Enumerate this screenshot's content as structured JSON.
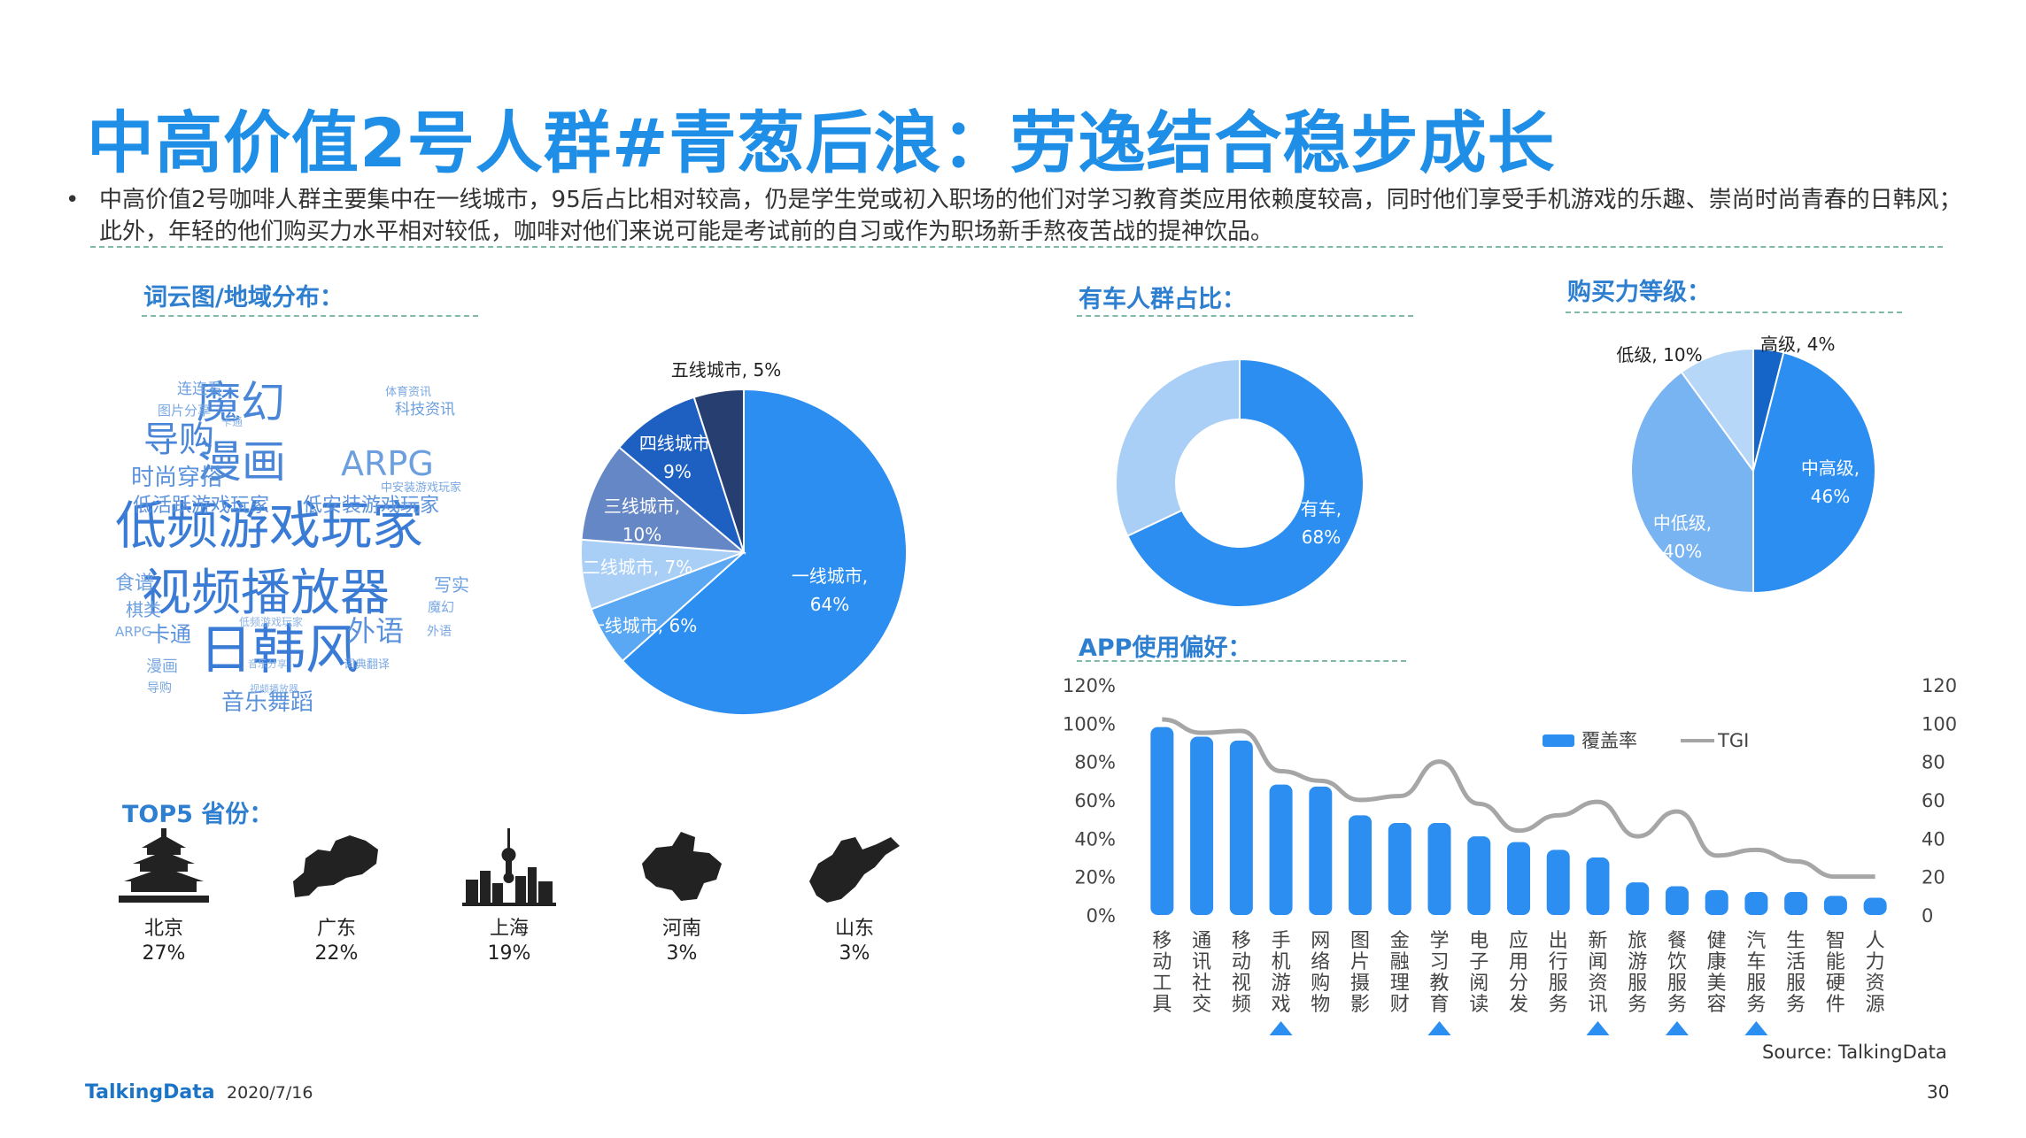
{
  "title": "中高价值2号人群#青葱后浪：劳逸结合稳步成长",
  "bullet": "中高价值2号咖啡人群主要集中在一线城市，95后占比相对较高，仍是学生党或初入职场的他们对学习教育类应用依赖度较高，同时他们享受手机游戏的乐趣、崇尚时尚青春的日韩风；此外，年轻的他们购买力水平相对较低，咖啡对他们来说可能是考试前的自习或作为职场新手熬夜苦战的提神饮品。",
  "sections": {
    "wordcloud": "词云图/地域分布：",
    "car": "有车人群占比：",
    "purchase": "购买力等级：",
    "app": "APP使用偏好：",
    "top5": "TOP5 省份："
  },
  "wordcloud": [
    {
      "t": "低频游戏玩家",
      "s": 58,
      "c": "#3a7bd5"
    },
    {
      "t": "视频播放器",
      "s": 56,
      "c": "#3a7bd5"
    },
    {
      "t": "日韩风",
      "s": 60,
      "c": "#3a7bd5"
    },
    {
      "t": "魔幻",
      "s": 50,
      "c": "#4a86d8"
    },
    {
      "t": "漫画",
      "s": 50,
      "c": "#4a86d8"
    },
    {
      "t": "导购",
      "s": 40,
      "c": "#4a86d8"
    },
    {
      "t": "ARPG",
      "s": 38,
      "c": "#6b9fe0"
    },
    {
      "t": "时尚穿搭",
      "s": 26,
      "c": "#5b92dc"
    },
    {
      "t": "低活跃游戏玩家",
      "s": 22,
      "c": "#5b92dc"
    },
    {
      "t": "低安装游戏玩家",
      "s": 22,
      "c": "#5b92dc"
    },
    {
      "t": "外语",
      "s": 32,
      "c": "#5b92dc"
    },
    {
      "t": "音乐舞蹈",
      "s": 26,
      "c": "#5b92dc"
    },
    {
      "t": "卡通",
      "s": 24,
      "c": "#5b92dc"
    },
    {
      "t": "食谱",
      "s": 22,
      "c": "#6b9fe0"
    },
    {
      "t": "棋类",
      "s": 20,
      "c": "#6b9fe0"
    },
    {
      "t": "写实",
      "s": 20,
      "c": "#6b9fe0"
    },
    {
      "t": "科技资讯",
      "s": 17,
      "c": "#6b9fe0"
    },
    {
      "t": "连连看",
      "s": 17,
      "c": "#6b9fe0"
    },
    {
      "t": "图片分享",
      "s": 15,
      "c": "#7aa8e2"
    },
    {
      "t": "体育资讯",
      "s": 13,
      "c": "#7aa8e2"
    },
    {
      "t": "中安装游戏玩家",
      "s": 13,
      "c": "#7aa8e2"
    },
    {
      "t": "魔幻",
      "s": 15,
      "c": "#7aa8e2"
    },
    {
      "t": "外语",
      "s": 14,
      "c": "#7aa8e2"
    },
    {
      "t": "ARPG",
      "s": 15,
      "c": "#7aa8e2"
    },
    {
      "t": "漫画",
      "s": 18,
      "c": "#7aa8e2"
    },
    {
      "t": "词典翻译",
      "s": 13,
      "c": "#7aa8e2"
    },
    {
      "t": "导购",
      "s": 14,
      "c": "#7aa8e2"
    },
    {
      "t": "低频游戏玩家",
      "s": 12,
      "c": "#8cb4e6"
    },
    {
      "t": "音乐分享",
      "s": 11,
      "c": "#8cb4e6"
    },
    {
      "t": "视频播放器",
      "s": 11,
      "c": "#8cb4e6"
    },
    {
      "t": "卡通",
      "s": 12,
      "c": "#8cb4e6"
    }
  ],
  "city_pie": {
    "slices": [
      {
        "label": "一线城市,",
        "pct": "64%",
        "value": 64,
        "color": "#2b8ef0"
      },
      {
        "label": "新一线城市, 6%",
        "pct": "",
        "value": 6,
        "color": "#5aa8f3"
      },
      {
        "label": "二线城市, 7%",
        "pct": "",
        "value": 7,
        "color": "#a9cff7"
      },
      {
        "label": "三线城市,",
        "pct": "10%",
        "value": 10,
        "color": "#6687c6"
      },
      {
        "label": "四线城市,",
        "pct": "9%",
        "value": 9,
        "color": "#1e60c2"
      },
      {
        "label": "五线城市, 5%",
        "pct": "",
        "value": 5,
        "color": "#273e70"
      }
    ]
  },
  "car_donut": {
    "slices": [
      {
        "label": "有车,",
        "pct": "68%",
        "value": 68,
        "color": "#2b8ef0"
      },
      {
        "label": "",
        "pct": "",
        "value": 32,
        "color": "#a9cff7"
      }
    ]
  },
  "purchase_pie": {
    "slices": [
      {
        "label": "高级, 4%",
        "pct": "",
        "value": 4,
        "color": "#1565c8"
      },
      {
        "label": "中高级,",
        "pct": "46%",
        "value": 46,
        "color": "#2b8ef0"
      },
      {
        "label": "中低级,",
        "pct": "40%",
        "value": 40,
        "color": "#78b3f2"
      },
      {
        "label": "低级, 10%",
        "pct": "",
        "value": 10,
        "color": "#b7d7f8"
      }
    ]
  },
  "provinces": [
    {
      "name": "北京",
      "pct": "27%",
      "icon": "temple-icon"
    },
    {
      "name": "广东",
      "pct": "22%",
      "icon": "guangdong-map-icon"
    },
    {
      "name": "上海",
      "pct": "19%",
      "icon": "skyline-icon"
    },
    {
      "name": "河南",
      "pct": "3%",
      "icon": "henan-map-icon"
    },
    {
      "name": "山东",
      "pct": "3%",
      "icon": "shandong-map-icon"
    }
  ],
  "chart_data": {
    "type": "bar",
    "title": "APP使用偏好：",
    "categories": [
      "移动工具",
      "通讯社交",
      "移动视频",
      "手机游戏",
      "网络购物",
      "图片摄影",
      "金融理财",
      "学习教育",
      "电子阅读",
      "应用分发",
      "出行服务",
      "新闻资讯",
      "旅游服务",
      "餐饮服务",
      "健康美容",
      "汽车服务",
      "生活服务",
      "智能硬件",
      "人力资源"
    ],
    "series": [
      {
        "name": "覆盖率",
        "type": "bar",
        "axis": "left",
        "color": "#2b8ef0",
        "values": [
          98,
          93,
          91,
          68,
          67,
          52,
          48,
          48,
          41,
          38,
          34,
          30,
          17,
          15,
          13,
          12,
          12,
          10,
          9
        ]
      },
      {
        "name": "TGI",
        "type": "line",
        "axis": "right",
        "color": "#a6a6a6",
        "values": [
          102,
          95,
          96,
          75,
          70,
          60,
          62,
          80,
          58,
          44,
          52,
          59,
          41,
          54,
          31,
          34,
          28,
          20,
          20
        ]
      }
    ],
    "left_axis": {
      "ticks": [
        "0%",
        "20%",
        "40%",
        "60%",
        "80%",
        "100%",
        "120%"
      ],
      "range": [
        0,
        120
      ]
    },
    "right_axis": {
      "ticks": [
        "0",
        "20",
        "40",
        "60",
        "80",
        "100",
        "120"
      ],
      "range": [
        0,
        120
      ]
    },
    "highlighted": [
      "手机游戏",
      "学习教育",
      "新闻资讯",
      "餐饮服务",
      "汽车服务"
    ],
    "legend_position": "top-right"
  },
  "source": "Source: TalkingData",
  "footer": {
    "logo": "TalkingData",
    "date": "2020/7/16",
    "page": "30"
  }
}
